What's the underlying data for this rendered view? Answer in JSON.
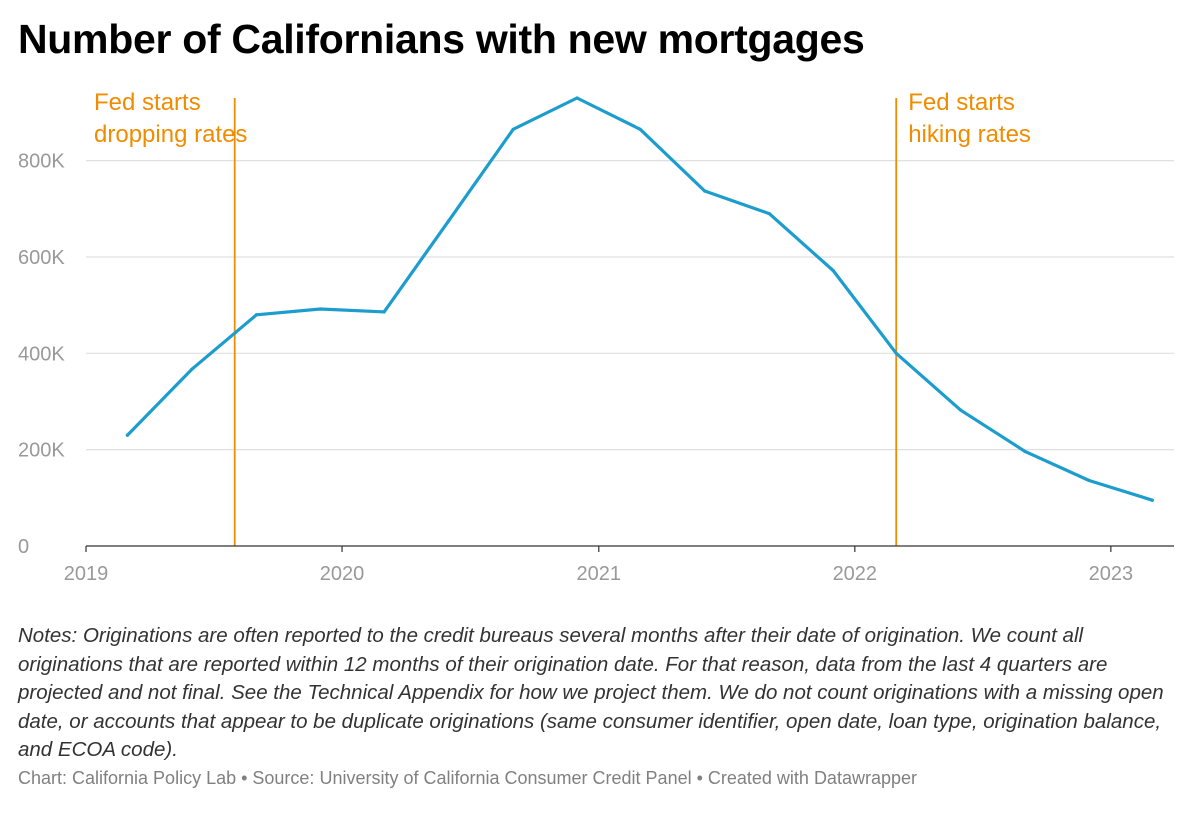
{
  "chart_data": {
    "type": "line",
    "title": "Number of Californians with new mortgages",
    "x_axis": {
      "type": "date",
      "range": [
        "2019-01-01",
        "2023-04-01"
      ],
      "ticks": [
        "2019",
        "2020",
        "2021",
        "2022",
        "2023"
      ]
    },
    "y_axis": {
      "range": [
        0,
        930000
      ],
      "ticks": [
        0,
        200000,
        400000,
        600000,
        800000
      ],
      "tick_labels": [
        "0",
        "200K",
        "400K",
        "600K",
        "800K"
      ]
    },
    "grid": true,
    "series": [
      {
        "color": "#1c9dce",
        "points": [
          {
            "x": "2019-03-01",
            "y": 230000
          },
          {
            "x": "2019-06-01",
            "y": 367000
          },
          {
            "x": "2019-09-01",
            "y": 480000
          },
          {
            "x": "2019-12-01",
            "y": 492000
          },
          {
            "x": "2020-03-01",
            "y": 486000
          },
          {
            "x": "2020-06-01",
            "y": 675000
          },
          {
            "x": "2020-09-01",
            "y": 865000
          },
          {
            "x": "2020-12-01",
            "y": 930000
          },
          {
            "x": "2021-03-01",
            "y": 865000
          },
          {
            "x": "2021-06-01",
            "y": 737000
          },
          {
            "x": "2021-09-01",
            "y": 690000
          },
          {
            "x": "2021-12-01",
            "y": 572000
          },
          {
            "x": "2022-03-01",
            "y": 400000
          },
          {
            "x": "2022-06-01",
            "y": 282000
          },
          {
            "x": "2022-09-01",
            "y": 196000
          },
          {
            "x": "2022-12-01",
            "y": 136000
          },
          {
            "x": "2023-03-01",
            "y": 95000
          }
        ]
      }
    ],
    "annotations": [
      {
        "x": "2019-08-01",
        "lines": [
          "Fed starts",
          "dropping rates"
        ],
        "color": "#f08c00"
      },
      {
        "x": "2022-03-01",
        "lines": [
          "Fed starts",
          "hiking rates"
        ],
        "color": "#f08c00"
      }
    ]
  },
  "notes": "Notes: Originations are often reported to the credit bureaus several months after their date of origination. We count all originations that are reported within 12 months of their origination date. For that reason, data from the last 4 quarters are projected and not final. See the Technical Appendix for how we project them. We do not count originations with a missing open date, or accounts that appear to be duplicate originations (same consumer identifier, open date, loan type, origination balance, and ECOA code).",
  "credit": "Chart: California Policy Lab • Source: University of California Consumer Credit Panel • Created with Datawrapper",
  "colors": {
    "line": "#1c9dce",
    "annotation": "#f08c00",
    "grid": "#e0e0e0",
    "axis": "#333333",
    "tick_text": "#999999"
  }
}
